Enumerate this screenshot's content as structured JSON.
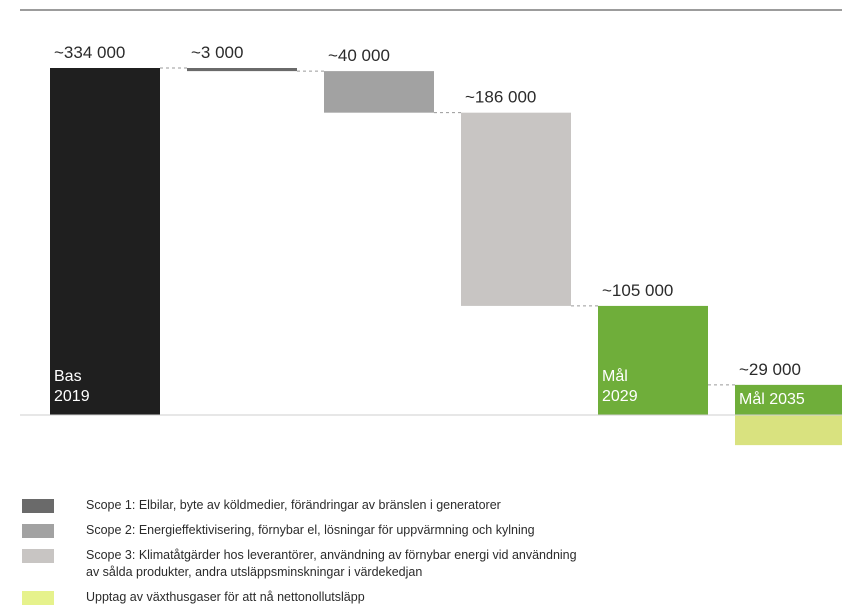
{
  "chart_data": {
    "type": "waterfall",
    "title": "",
    "xlabel": "",
    "ylabel": "",
    "ylim": [
      -29000,
      334000
    ],
    "grid": false,
    "legend_position": "bottom-left",
    "bars": [
      {
        "kind": "total",
        "label": "~334 000",
        "start": 0,
        "end": 334000,
        "inside_label": [
          "Bas",
          "2019"
        ],
        "color": "#1f1f1f"
      },
      {
        "kind": "reduction",
        "label": "~3 000",
        "start": 334000,
        "end": 331000,
        "inside_label": [],
        "color": "#6a6a6a"
      },
      {
        "kind": "reduction",
        "label": "~40 000",
        "start": 331000,
        "end": 291000,
        "inside_label": [],
        "color": "#a2a2a2"
      },
      {
        "kind": "reduction",
        "label": "~186 000",
        "start": 291000,
        "end": 105000,
        "inside_label": [],
        "color": "#c8c5c3"
      },
      {
        "kind": "total",
        "label": "~105 000",
        "start": 0,
        "end": 105000,
        "inside_label": [
          "Mål",
          "2029"
        ],
        "color": "#6fae3a"
      },
      {
        "kind": "total",
        "label": "~29 000",
        "start": 0,
        "end": 29000,
        "inside_label": [
          "Mål 2035"
        ],
        "color": "#6fae3a",
        "removal": {
          "value": 29000,
          "color": "#d9e27f"
        }
      }
    ],
    "legend": [
      {
        "color": "#6a6a6a",
        "text": "Scope 1: Elbilar, byte av köldmedier, förändringar av bränslen i generatorer"
      },
      {
        "color": "#a2a2a2",
        "text": "Scope 2: Energieffektivisering, förnybar el, lösningar för uppvärmning och kylning"
      },
      {
        "color": "#c8c5c3",
        "text": "Scope 3: Klimatåtgärder hos leverantörer, användning av förnybar energi vid användning\nav sålda produkter, andra utsläppsminskningar i värdekedjan"
      },
      {
        "color": "#e6f28c",
        "text": "Upptag av växthusgaser för att nå nettonollutsläpp"
      }
    ]
  }
}
